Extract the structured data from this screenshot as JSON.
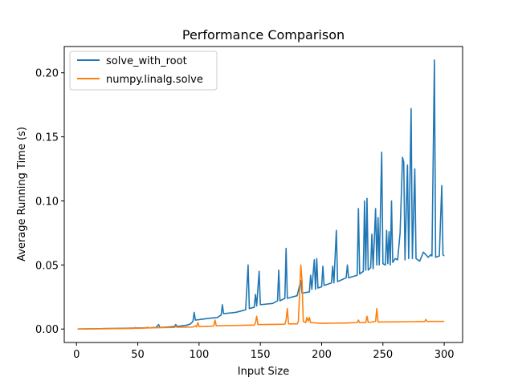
{
  "chart_data": {
    "type": "line",
    "title": "Performance Comparison",
    "xlabel": "Input Size",
    "ylabel": "Average Running Time (s)",
    "xlim": [
      -10,
      315
    ],
    "ylim": [
      -0.0105,
      0.2205
    ],
    "xticks": [
      0,
      50,
      100,
      150,
      200,
      250,
      300
    ],
    "xtick_labels": [
      "0",
      "50",
      "100",
      "150",
      "200",
      "250",
      "300"
    ],
    "yticks": [
      0.0,
      0.05,
      0.1,
      0.15,
      0.2
    ],
    "ytick_labels": [
      "0.00",
      "0.05",
      "0.10",
      "0.15",
      "0.20"
    ],
    "grid": false,
    "legend": "top-left",
    "series": [
      {
        "name": "solve_with_root",
        "color": "#1f77b4",
        "points": [
          [
            1,
            0.0
          ],
          [
            20,
            0.0003
          ],
          [
            40,
            0.0006
          ],
          [
            50,
            0.0008
          ],
          [
            60,
            0.001
          ],
          [
            65,
            0.0013
          ],
          [
            67,
            0.0035
          ],
          [
            68,
            0.0012
          ],
          [
            75,
            0.0016
          ],
          [
            80,
            0.002
          ],
          [
            81,
            0.0035
          ],
          [
            82,
            0.002
          ],
          [
            90,
            0.003
          ],
          [
            93,
            0.004
          ],
          [
            95,
            0.006
          ],
          [
            96,
            0.013
          ],
          [
            97,
            0.007
          ],
          [
            105,
            0.008
          ],
          [
            115,
            0.009
          ],
          [
            118,
            0.011
          ],
          [
            119,
            0.019
          ],
          [
            120,
            0.012
          ],
          [
            130,
            0.013
          ],
          [
            138,
            0.015
          ],
          [
            140,
            0.05
          ],
          [
            141,
            0.016
          ],
          [
            145,
            0.017
          ],
          [
            146,
            0.027
          ],
          [
            147,
            0.018
          ],
          [
            149,
            0.045
          ],
          [
            150,
            0.019
          ],
          [
            160,
            0.02
          ],
          [
            164,
            0.022
          ],
          [
            165,
            0.046
          ],
          [
            166,
            0.022
          ],
          [
            170,
            0.024
          ],
          [
            171,
            0.063
          ],
          [
            172,
            0.024
          ],
          [
            180,
            0.026
          ],
          [
            183,
            0.038
          ],
          [
            184,
            0.028
          ],
          [
            190,
            0.029
          ],
          [
            191,
            0.042
          ],
          [
            192,
            0.031
          ],
          [
            194,
            0.054
          ],
          [
            195,
            0.031
          ],
          [
            196,
            0.055
          ],
          [
            197,
            0.032
          ],
          [
            200,
            0.033
          ],
          [
            201,
            0.049
          ],
          [
            202,
            0.034
          ],
          [
            208,
            0.036
          ],
          [
            209,
            0.049
          ],
          [
            210,
            0.036
          ],
          [
            212,
            0.077
          ],
          [
            213,
            0.037
          ],
          [
            220,
            0.04
          ],
          [
            221,
            0.05
          ],
          [
            222,
            0.04
          ],
          [
            229,
            0.042
          ],
          [
            230,
            0.094
          ],
          [
            231,
            0.043
          ],
          [
            234,
            0.045
          ],
          [
            235,
            0.1
          ],
          [
            236,
            0.046
          ],
          [
            237,
            0.102
          ],
          [
            238,
            0.046
          ],
          [
            240,
            0.048
          ],
          [
            241,
            0.074
          ],
          [
            242,
            0.047
          ],
          [
            244,
            0.094
          ],
          [
            245,
            0.05
          ],
          [
            246,
            0.087
          ],
          [
            247,
            0.05
          ],
          [
            249,
            0.138
          ],
          [
            250,
            0.051
          ],
          [
            252,
            0.05
          ],
          [
            253,
            0.077
          ],
          [
            254,
            0.051
          ],
          [
            255,
            0.076
          ],
          [
            256,
            0.05
          ],
          [
            257,
            0.1
          ],
          [
            258,
            0.052
          ],
          [
            260,
            0.055
          ],
          [
            262,
            0.054
          ],
          [
            264,
            0.075
          ],
          [
            266,
            0.134
          ],
          [
            267,
            0.13
          ],
          [
            268,
            0.054
          ],
          [
            270,
            0.128
          ],
          [
            271,
            0.055
          ],
          [
            273,
            0.172
          ],
          [
            274,
            0.055
          ],
          [
            276,
            0.125
          ],
          [
            277,
            0.055
          ],
          [
            280,
            0.053
          ],
          [
            283,
            0.06
          ],
          [
            285,
            0.058
          ],
          [
            287,
            0.056
          ],
          [
            289,
            0.058
          ],
          [
            290,
            0.057
          ],
          [
            292,
            0.21
          ],
          [
            293,
            0.056
          ],
          [
            296,
            0.057
          ],
          [
            298,
            0.112
          ],
          [
            299,
            0.058
          ],
          [
            300,
            0.057
          ]
        ]
      },
      {
        "name": "numpy.linalg.solve",
        "color": "#ff7f0e",
        "points": [
          [
            1,
            0.0
          ],
          [
            30,
            0.0003
          ],
          [
            47,
            0.0005
          ],
          [
            48,
            0.0013
          ],
          [
            49,
            0.0006
          ],
          [
            57,
            0.0008
          ],
          [
            58,
            0.0015
          ],
          [
            59,
            0.0009
          ],
          [
            70,
            0.0011
          ],
          [
            80,
            0.0013
          ],
          [
            81,
            0.002
          ],
          [
            82,
            0.0014
          ],
          [
            90,
            0.0015
          ],
          [
            95,
            0.0016
          ],
          [
            97,
            0.0025
          ],
          [
            98,
            0.0017
          ],
          [
            99,
            0.005
          ],
          [
            100,
            0.002
          ],
          [
            110,
            0.0022
          ],
          [
            112,
            0.0025
          ],
          [
            113,
            0.007
          ],
          [
            114,
            0.0025
          ],
          [
            130,
            0.0028
          ],
          [
            140,
            0.003
          ],
          [
            145,
            0.0031
          ],
          [
            146,
            0.005
          ],
          [
            147,
            0.01
          ],
          [
            148,
            0.0035
          ],
          [
            160,
            0.0036
          ],
          [
            170,
            0.0038
          ],
          [
            171,
            0.007
          ],
          [
            172,
            0.016
          ],
          [
            173,
            0.004
          ],
          [
            180,
            0.004
          ],
          [
            181,
            0.006
          ],
          [
            183,
            0.05
          ],
          [
            184,
            0.038
          ],
          [
            185,
            0.006
          ],
          [
            187,
            0.005
          ],
          [
            188,
            0.009
          ],
          [
            189,
            0.006
          ],
          [
            190,
            0.009
          ],
          [
            191,
            0.005
          ],
          [
            200,
            0.0045
          ],
          [
            210,
            0.0046
          ],
          [
            220,
            0.0047
          ],
          [
            229,
            0.005
          ],
          [
            230,
            0.007
          ],
          [
            231,
            0.005
          ],
          [
            236,
            0.005
          ],
          [
            237,
            0.01
          ],
          [
            238,
            0.0052
          ],
          [
            240,
            0.0053
          ],
          [
            244,
            0.006
          ],
          [
            245,
            0.016
          ],
          [
            246,
            0.0055
          ],
          [
            260,
            0.0056
          ],
          [
            270,
            0.0057
          ],
          [
            280,
            0.0058
          ],
          [
            284,
            0.0058
          ],
          [
            285,
            0.0075
          ],
          [
            286,
            0.0059
          ],
          [
            290,
            0.006
          ],
          [
            300,
            0.006
          ]
        ]
      }
    ]
  }
}
